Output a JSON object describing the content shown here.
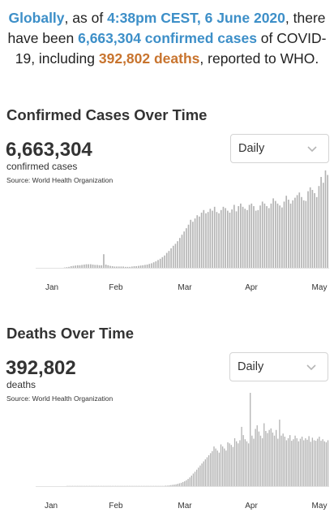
{
  "summary": {
    "globally": "Globally",
    "as_of": ", as of ",
    "time": "4:38pm CEST, 6 June 2020",
    "there_have_been": ", there have been ",
    "cases": "6,663,304 confirmed cases",
    "of_covid": " of COVID-19, including ",
    "deaths": "392,802 deaths",
    "reported": ", reported to WHO."
  },
  "cases_section": {
    "title": "Confirmed Cases Over Time",
    "total": "6,663,304",
    "unit": "confirmed cases",
    "source": "Source: World Health Organization",
    "dropdown_value": "Daily"
  },
  "deaths_section": {
    "title": "Deaths Over Time",
    "total": "392,802",
    "unit": "deaths",
    "source": "Source: World Health Organization",
    "dropdown_value": "Daily"
  },
  "colors": {
    "accent_blue": "#3d8fc8",
    "accent_orange": "#c8742e",
    "bar": "#b3b3b3"
  },
  "icons": {
    "dropdown": "chevron-down-icon"
  },
  "chart_data": [
    {
      "type": "bar",
      "x_ticks": [
        "Jan",
        "Feb",
        "Mar",
        "Apr",
        "May"
      ],
      "values": [
        0,
        0,
        0,
        0,
        0,
        0,
        0,
        0,
        0,
        0,
        0,
        0,
        0,
        1,
        2,
        3,
        5,
        6,
        7,
        8,
        8,
        9,
        10,
        11,
        11,
        11,
        10,
        9,
        9,
        8,
        8,
        42,
        10,
        8,
        6,
        5,
        4,
        4,
        4,
        4,
        4,
        3,
        3,
        3,
        4,
        5,
        5,
        6,
        7,
        8,
        9,
        10,
        12,
        14,
        17,
        20,
        24,
        28,
        33,
        38,
        46,
        52,
        60,
        68,
        74,
        82,
        92,
        102,
        112,
        122,
        133,
        148,
        142,
        152,
        162,
        158,
        170,
        178,
        168,
        172,
        182,
        176,
        188,
        172,
        168,
        178,
        188,
        184,
        176,
        170,
        180,
        194,
        174,
        190,
        198,
        188,
        182,
        178,
        194,
        198,
        190,
        176,
        178,
        192,
        204,
        198,
        190,
        184,
        198,
        214,
        206,
        198,
        192,
        186,
        204,
        222,
        210,
        198,
        208,
        216,
        224,
        232,
        218,
        208,
        206,
        236,
        248,
        240,
        230,
        218,
        252,
        280,
        262,
        300,
        286
      ]
    },
    {
      "type": "bar",
      "x_ticks": [
        "Jan",
        "Feb",
        "Mar",
        "Apr",
        "May"
      ],
      "values": [
        0,
        0,
        0,
        0,
        0,
        0,
        0,
        0,
        0,
        0,
        0,
        0,
        0,
        0,
        0,
        0,
        0,
        0,
        1,
        1,
        1,
        1,
        1,
        1,
        1,
        1,
        1,
        1,
        1,
        1,
        1,
        1,
        1,
        1,
        1,
        1,
        1,
        1,
        1,
        1,
        1,
        1,
        1,
        1,
        1,
        1,
        1,
        1,
        1,
        1,
        1,
        1,
        1,
        1,
        1,
        1,
        1,
        1,
        1,
        1,
        1,
        1,
        1,
        1,
        1,
        1,
        1,
        1,
        1,
        1,
        1,
        1,
        1,
        1,
        1,
        2,
        2,
        3,
        4,
        5,
        6,
        7,
        9,
        11,
        13,
        16,
        19,
        23,
        28,
        34,
        41,
        49,
        56,
        64,
        72,
        80,
        88,
        96,
        104,
        112,
        120,
        128,
        136,
        154,
        146,
        138,
        130,
        162,
        154,
        146,
        138,
        170,
        166,
        160,
        152,
        186,
        174,
        166,
        178,
        230,
        198,
        182,
        174,
        166,
        362,
        196,
        184,
        222,
        236,
        212,
        196,
        186,
        244,
        214,
        206,
        218,
        224,
        208,
        196,
        218,
        184,
        258,
        196,
        204,
        192,
        178,
        186,
        198,
        176,
        182,
        196,
        186,
        174,
        184,
        192,
        178,
        186,
        180,
        194,
        172,
        188,
        178,
        176,
        184,
        192,
        176,
        182,
        174,
        170,
        178
      ]
    }
  ]
}
